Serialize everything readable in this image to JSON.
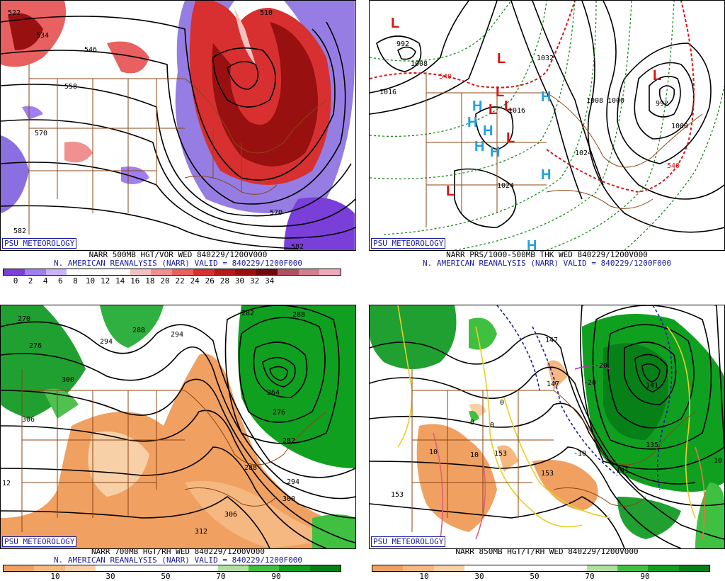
{
  "panels": [
    {
      "badge": "PSU METEOROLOGY",
      "caption1": "NARR 500MB HGT/VOR WED 840229/1200V000",
      "caption2": "N. AMERICAN REANALYSIS (NARR) VALID = 840229/1200F000",
      "colorbar": {
        "colors": [
          "#7a3fd8",
          "#a07ff0",
          "#c8b2f8",
          "#ffffff",
          "#ffffff",
          "#ffffff",
          "#f4c0c0",
          "#f09090",
          "#e86060",
          "#d83030",
          "#b81818",
          "#981010",
          "#700808",
          "#b05060",
          "#d08090",
          "#f0a8b8"
        ],
        "ticks": [
          "0",
          "2",
          "4",
          "6",
          "8",
          "10",
          "12",
          "14",
          "16",
          "18",
          "20",
          "22",
          "24",
          "26",
          "28",
          "30",
          "32",
          "34"
        ]
      },
      "contour_labels": [
        "522",
        "534",
        "546",
        "558",
        "570",
        "582",
        "510",
        "570",
        "582"
      ]
    },
    {
      "badge": "PSU METEOROLOGY",
      "caption1": "NARR PRS/1000-500MB THK WED 840229/1200V000",
      "caption2": "N. AMERICAN REANALYSIS (NARR) VALID = 840229/1200F000",
      "contour_labels": [
        "992",
        "1008",
        "1016",
        "1032",
        "1008",
        "1000",
        "992",
        "1016",
        "1024",
        "1024",
        "1000",
        "540",
        "540"
      ]
    },
    {
      "badge": "PSU METEOROLOGY",
      "caption1": "NARR 700MB HGT/RH WED 840229/1200V000",
      "caption2": "N. AMERICAN REANALYSIS (NARR) VALID = 840229/1200F000",
      "colorbar": {
        "colors": [
          "#f0a060",
          "#f4b880",
          "#f8d0a8",
          "#ffffff",
          "#ffffff",
          "#ffffff",
          "#ffffff",
          "#b0e0a0",
          "#40c040",
          "#10a020",
          "#088018"
        ],
        "ticks": [
          "10",
          "30",
          "50",
          "70",
          "90"
        ]
      },
      "contour_labels": [
        "270",
        "276",
        "288",
        "294",
        "282",
        "288",
        "300",
        "294",
        "306",
        "264",
        "276",
        "282",
        "288",
        "294",
        "300",
        "306",
        "312",
        "12"
      ]
    },
    {
      "badge": "PSU METEOROLOGY",
      "caption1": "NARR 850MB HGT/T/RH WED 840229/1200V000",
      "caption2": "",
      "colorbar": {
        "colors": [
          "#f0a060",
          "#f4b880",
          "#f8d0a8",
          "#ffffff",
          "#ffffff",
          "#ffffff",
          "#ffffff",
          "#b0e0a0",
          "#40c040",
          "#10a020",
          "#088018"
        ],
        "ticks": [
          "10",
          "30",
          "50",
          "70",
          "90"
        ]
      },
      "contour_labels": [
        "147",
        "147",
        "153",
        "153",
        "153",
        "141",
        "135",
        "141",
        "10",
        "10",
        "10",
        "0",
        "0",
        "0",
        "-10",
        "-20",
        "-20"
      ]
    }
  ]
}
